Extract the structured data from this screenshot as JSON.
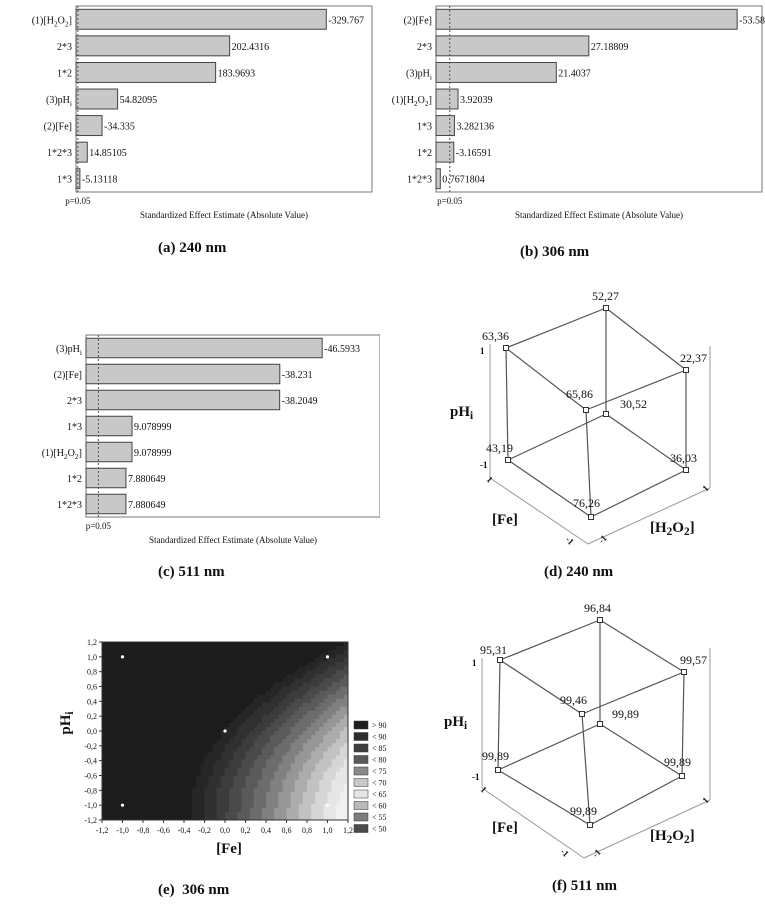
{
  "panels": [
    {
      "caption": "(a) 240 nm",
      "chart_data": {
        "type": "bar",
        "orientation": "horizontal",
        "categories": [
          "(1)[H2O2]",
          "2*3",
          "1*2",
          "(3)pHi",
          "(2)[Fe]",
          "1*2*3",
          "1*3"
        ],
        "value_labels": [
          "-329.767",
          "202.4316",
          "183.9693",
          "54.82095",
          "-34.335",
          "14.85105",
          "-5.13118"
        ],
        "values": [
          329.767,
          202.4316,
          183.9693,
          54.82095,
          34.335,
          14.85105,
          5.13118
        ],
        "xlabel": "Standardized Effect Estimate (Absolute Value)",
        "reference_label": "p=0.05",
        "reference_value": 2.447,
        "xlim": [
          0,
          390
        ]
      }
    },
    {
      "caption": "(b) 306 nm",
      "chart_data": {
        "type": "bar",
        "orientation": "horizontal",
        "categories": [
          "(2)[Fe]",
          "2*3",
          "(3)pHi",
          "(1)[H2O2]",
          "1*3",
          "1*2",
          "1*2*3"
        ],
        "value_labels": [
          "-53.58",
          "27.18809",
          "21.4037",
          "3.92039",
          "3.282136",
          "-3.16591",
          "0.7671804"
        ],
        "values": [
          53.58,
          27.18809,
          21.4037,
          3.92039,
          3.282136,
          3.16591,
          0.7671804
        ],
        "xlabel": "Standardized Effect Estimate (Absolute Value)",
        "reference_label": "p=0.05",
        "reference_value": 2.447,
        "xlim": [
          0,
          58
        ]
      }
    },
    {
      "caption": "(c) 511 nm",
      "chart_data": {
        "type": "bar",
        "orientation": "horizontal",
        "categories": [
          "(3)pHi",
          "(2)[Fe]",
          "2*3",
          "1*3",
          "(1)[H2O2]",
          "1*2",
          "1*2*3"
        ],
        "value_labels": [
          "-46.5933",
          "-38.231",
          "-38.2049",
          "9.078999",
          "9.078999",
          "7.880649",
          "7.880649"
        ],
        "values": [
          46.5933,
          38.231,
          38.2049,
          9.078999,
          9.078999,
          7.880649,
          7.880649
        ],
        "xlabel": "Standardized Effect Estimate (Absolute Value)",
        "reference_label": "p=0.05",
        "reference_value": 2.447,
        "xlim": [
          0,
          58
        ]
      }
    },
    {
      "caption": "(d) 240 nm",
      "cube": {
        "axis_labels": {
          "y": "pHi",
          "x": "[Fe]",
          "z": "[H2O2]"
        },
        "tick_one": "1",
        "tick_minus": "-1",
        "vertex_values": {
          "top_back": "52,27",
          "top_left": "63,36",
          "top_right": "22,37",
          "top_front": "65,86",
          "bottom_back": "30,52",
          "bottom_left": "43,19",
          "bottom_right": "36,03",
          "bottom_front": "76,26"
        }
      }
    },
    {
      "caption": "(e)  306 nm",
      "chart_data": {
        "type": "heatmap",
        "xlabel": "[Fe]",
        "ylabel": "pHi",
        "x_ticks": [
          "-1,2",
          "-1,0",
          "-0,8",
          "-0,6",
          "-0,4",
          "-0,2",
          "0,0",
          "0,2",
          "0,4",
          "0,6",
          "0,8",
          "1,0",
          "1,2"
        ],
        "y_ticks": [
          "1,2",
          "1,0",
          "0,8",
          "0,6",
          "0,4",
          "0,2",
          "0,0",
          "-0,2",
          "-0,4",
          "-0,6",
          "-0,8",
          "-1,0",
          "-1,2"
        ],
        "xlim": [
          -1.2,
          1.2
        ],
        "ylim": [
          -1.2,
          1.2
        ],
        "legend": [
          "> 90",
          "< 90",
          "< 85",
          "< 80",
          "< 75",
          "< 70",
          "< 65",
          "< 60",
          "< 55",
          "< 50"
        ],
        "legend_colors": [
          "#1f1f1f",
          "#2d2d2d",
          "#3f3f3f",
          "#5a5a5a",
          "#8a8a8a",
          "#c9c9c9",
          "#e6e6e6",
          "#b8b8b8",
          "#7d7d7d",
          "#4a4a4a"
        ],
        "design_points": [
          [
            -1,
            1
          ],
          [
            1,
            1
          ],
          [
            0,
            0
          ],
          [
            -1,
            -1
          ],
          [
            1,
            -1
          ]
        ]
      }
    },
    {
      "caption": "(f) 511 nm",
      "cube": {
        "axis_labels": {
          "y": "pHi",
          "x": "[Fe]",
          "z": "[H2O2]"
        },
        "tick_one": "1",
        "tick_minus": "-1",
        "vertex_values": {
          "top_back": "96,84",
          "top_left": "95,31",
          "top_right": "99,57",
          "top_front": "99,46",
          "bottom_back": "99,89",
          "bottom_left": "99,89",
          "bottom_right": "99,89",
          "bottom_front": "99,89"
        }
      }
    }
  ]
}
